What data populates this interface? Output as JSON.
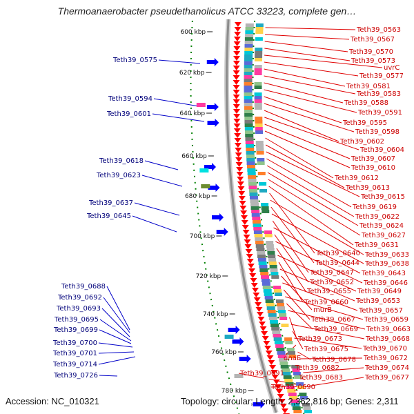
{
  "title": "Thermoanaerobacter pseudethanolicus ATCC 33223, complete gen…",
  "accession": "Accession: NC_010321",
  "topology": "Topology: circular; Length: 2,362,816 bp; Genes: 2,311",
  "colors": {
    "backbone": "#8c8c8c",
    "forward_gene": "#ff0000",
    "reverse_gene": "#0000ff",
    "tick_dots": "#008000",
    "right_label": "#cc0000",
    "left_label": "#00007a"
  },
  "kbp_ticks": [
    "600 kbp",
    "620 kbp",
    "640 kbp",
    "660 kbp",
    "680 kbp",
    "700 kbp",
    "720 kbp",
    "740 kbp",
    "760 kbp",
    "780 kbp"
  ],
  "right_labels": [
    "Teth39_0563",
    "Teth39_0567",
    "Teth39_0570",
    "Teth39_0573",
    "uvrC",
    "Teth39_0577",
    "Teth39_0581",
    "Teth39_0583",
    "Teth39_0588",
    "Teth39_0591",
    "Teth39_0595",
    "Teth39_0598",
    "Teth39_0602",
    "Teth39_0604",
    "Teth39_0607",
    "Teth39_0610",
    "Teth39_0612",
    "Teth39_0613",
    "Teth39_0615",
    "Teth39_0619",
    "Teth39_0622",
    "Teth39_0624",
    "Teth39_0627",
    "Teth39_0631",
    "Teth39_0640",
    "Teth39_0633",
    "Teth39_0644",
    "Teth39_0638",
    "Teth39_0647",
    "Teth39_0643",
    "Teth39_0652",
    "Teth39_0646",
    "Teth39_0655",
    "Teth39_0649",
    "Teth39_0660",
    "Teth39_0653",
    "murB",
    "Teth39_0657",
    "Teth39_0667",
    "Teth39_0659",
    "Teth39_0669",
    "Teth39_0663",
    "Teth39_0673",
    "Teth39_0668",
    "Teth39_0675",
    "Teth39_0670",
    "dnaE",
    "Teth39_0678",
    "Teth39_0672",
    "Teth39_0682",
    "Teth39_0674",
    "Teth39_0683",
    "Teth39_0677",
    "Teth39_0691",
    "Teth39_0690"
  ],
  "left_labels": [
    "Teth39_0575",
    "Teth39_0594",
    "Teth39_0601",
    "Teth39_0618",
    "Teth39_0623",
    "Teth39_0637",
    "Teth39_0645",
    "Teth39_0688",
    "Teth39_0692",
    "Teth39_0693",
    "Teth39_0695",
    "Teth39_0699",
    "Teth39_0700",
    "Teth39_0701",
    "Teth39_0714",
    "Teth39_0726"
  ]
}
